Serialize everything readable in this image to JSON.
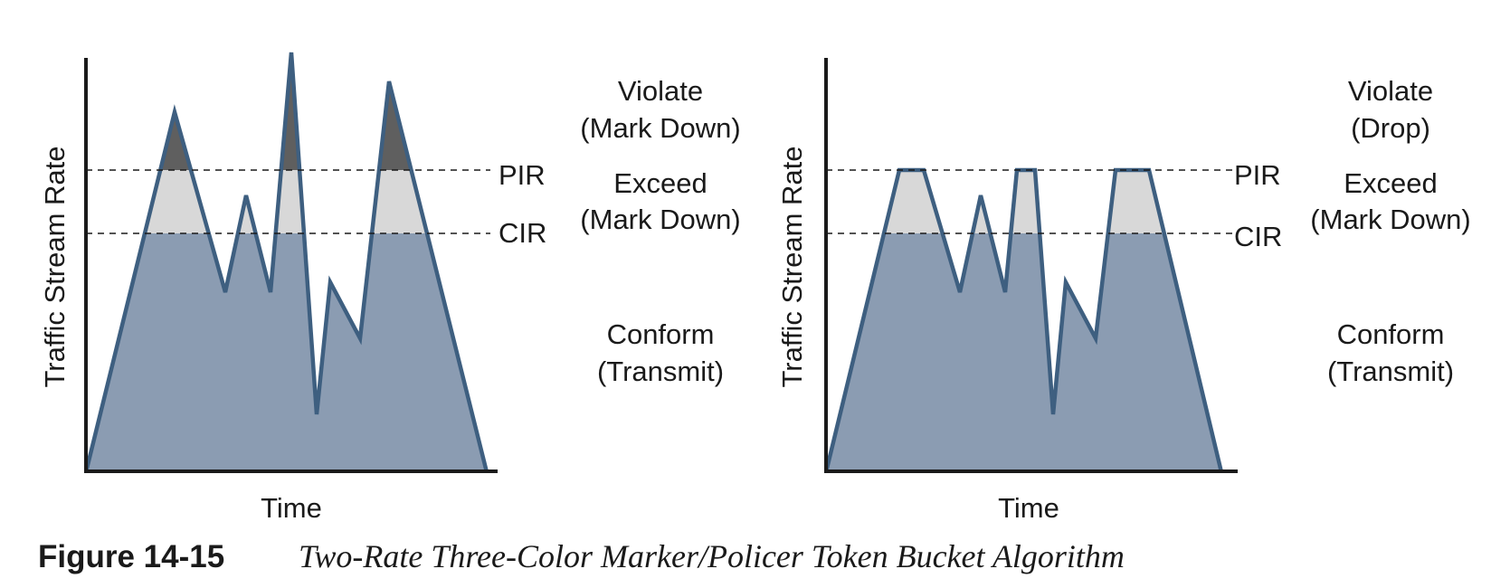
{
  "figure": {
    "number": "Figure 14-15",
    "title": "Two-Rate Three-Color Marker/Policer Token Bucket Algorithm"
  },
  "colors": {
    "conform": "#8b9cb2",
    "exceed": "#d8d8d8",
    "violate": "#5f5f5f",
    "outline": "#3e5f80",
    "axis": "#1a1a1a"
  },
  "panels": [
    {
      "id": "mark-down",
      "ylabel": "Traffic Stream Rate",
      "xlabel": "Time",
      "pir_label": "PIR",
      "cir_label": "CIR",
      "violate": {
        "line1": "Violate",
        "line2": "(Mark Down)"
      },
      "exceed": {
        "line1": "Exceed",
        "line2": "(Mark Down)"
      },
      "conform": {
        "line1": "Conform",
        "line2": "(Transmit)"
      }
    },
    {
      "id": "drop",
      "ylabel": "Traffic Stream Rate",
      "xlabel": "Time",
      "pir_label": "PIR",
      "cir_label": "CIR",
      "violate": {
        "line1": "Violate",
        "line2": "(Drop)"
      },
      "exceed": {
        "line1": "Exceed",
        "line2": "(Mark Down)"
      },
      "conform": {
        "line1": "Conform",
        "line2": "(Transmit)"
      }
    }
  ]
}
